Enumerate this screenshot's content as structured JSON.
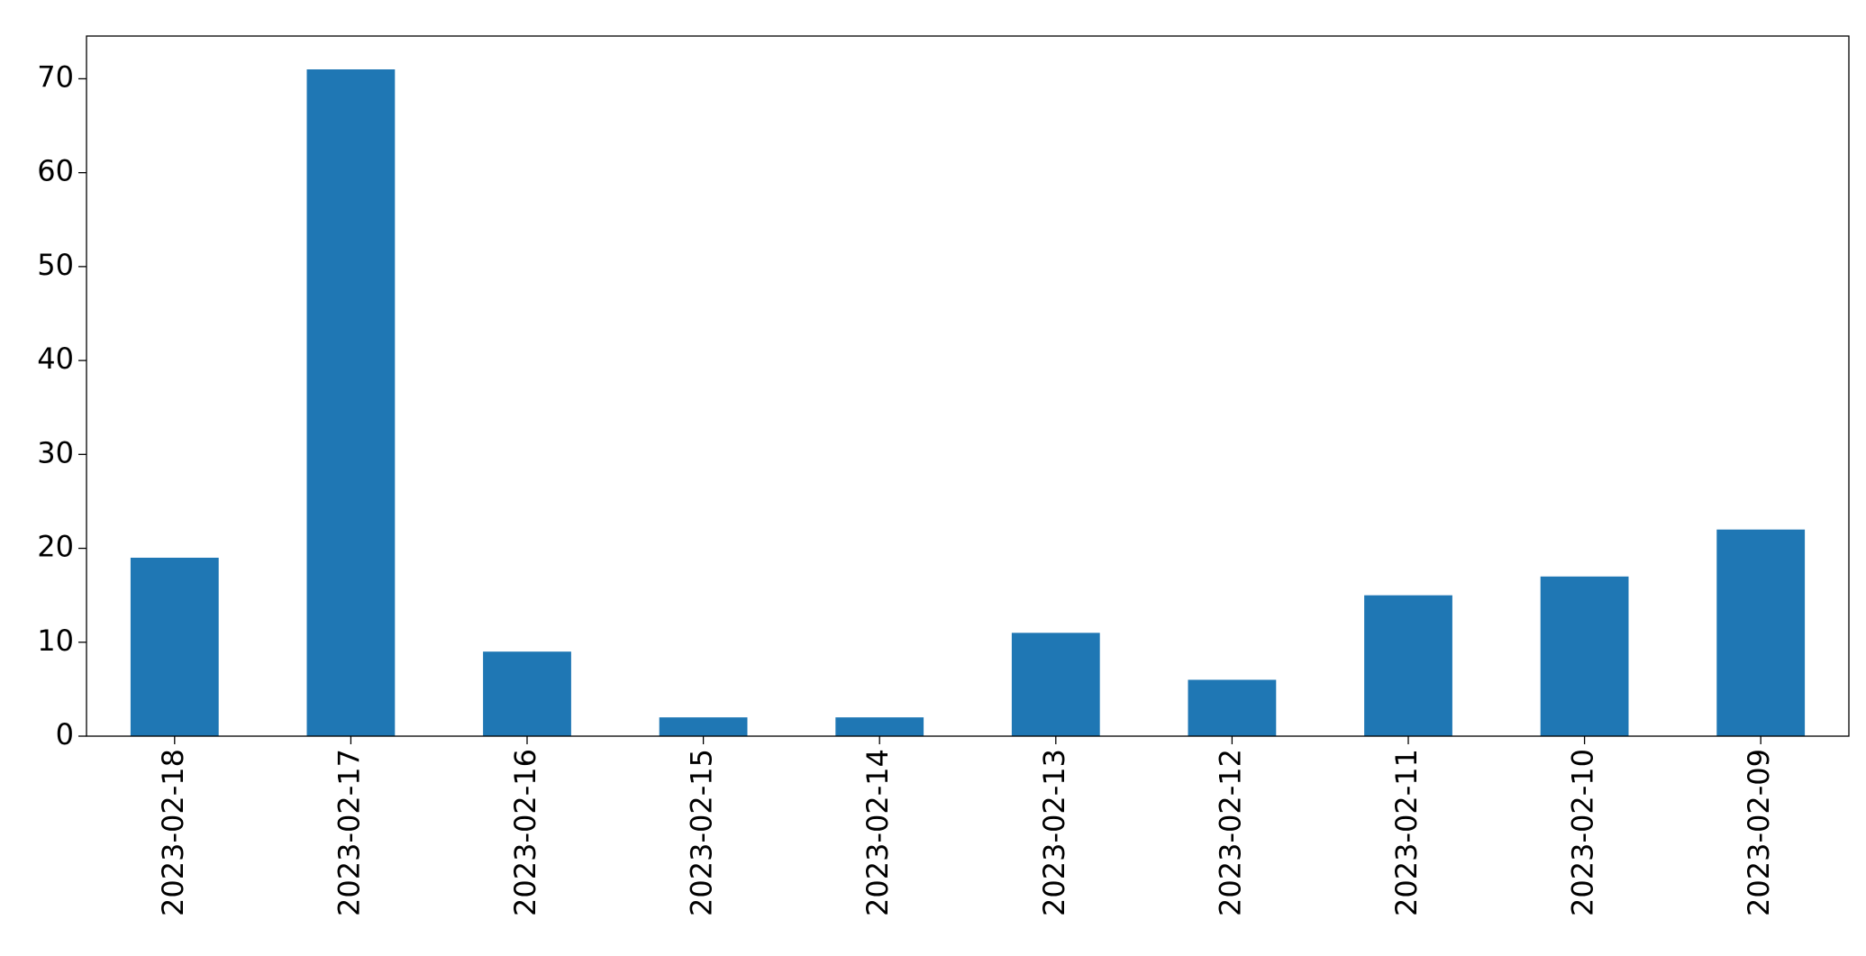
{
  "chart_data": {
    "type": "bar",
    "categories": [
      "2023-02-18",
      "2023-02-17",
      "2023-02-16",
      "2023-02-15",
      "2023-02-14",
      "2023-02-13",
      "2023-02-12",
      "2023-02-11",
      "2023-02-10",
      "2023-02-09"
    ],
    "values": [
      19,
      71,
      9,
      2,
      2,
      11,
      6,
      15,
      17,
      22
    ],
    "color": "#1f77b4",
    "ylim": [
      0,
      74.55
    ],
    "yticks": [
      0,
      10,
      20,
      30,
      40,
      50,
      60,
      70
    ],
    "grid": false
  }
}
